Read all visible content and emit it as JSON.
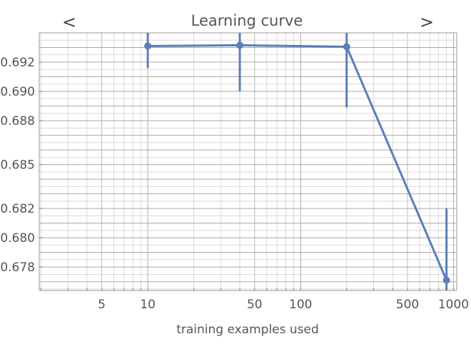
{
  "chart_data": {
    "type": "line",
    "title": "Learning curve",
    "xlabel": "training examples used",
    "ylabel": "",
    "x_scale": "log",
    "xlim": [
      1.95,
      1050
    ],
    "ylim": [
      0.6764,
      0.694
    ],
    "x_ticks": [
      {
        "value": 5,
        "label": "5"
      },
      {
        "value": 10,
        "label": "10"
      },
      {
        "value": 50,
        "label": "50"
      },
      {
        "value": 100,
        "label": "100"
      },
      {
        "value": 500,
        "label": "500"
      },
      {
        "value": 1000,
        "label": "1000"
      }
    ],
    "y_ticks": [
      {
        "value": 0.678,
        "label": "0.678"
      },
      {
        "value": 0.68,
        "label": "0.680"
      },
      {
        "value": 0.682,
        "label": "0.682"
      },
      {
        "value": 0.685,
        "label": "0.685"
      },
      {
        "value": 0.688,
        "label": "0.688"
      },
      {
        "value": 0.69,
        "label": "0.690"
      },
      {
        "value": 0.692,
        "label": "0.692"
      }
    ],
    "grid": true,
    "series": [
      {
        "color": "#5b7fb5",
        "points": [
          {
            "x": 10,
            "y": 0.6931,
            "err_low": 0.6916,
            "err_high": 0.6945
          },
          {
            "x": 40,
            "y": 0.69315,
            "err_low": 0.69,
            "err_high": 0.6945
          },
          {
            "x": 200,
            "y": 0.69305,
            "err_low": 0.6889,
            "err_high": 0.6945
          },
          {
            "x": 900,
            "y": 0.6771,
            "err_low": 0.676,
            "err_high": 0.682
          }
        ]
      }
    ]
  },
  "nav": {
    "prev_label": "<",
    "next_label": ">"
  },
  "colors": {
    "grid_major": "#a8a8a8",
    "grid_minor": "#d8d8d8",
    "frame": "#9a9a9a",
    "text": "#555555"
  }
}
